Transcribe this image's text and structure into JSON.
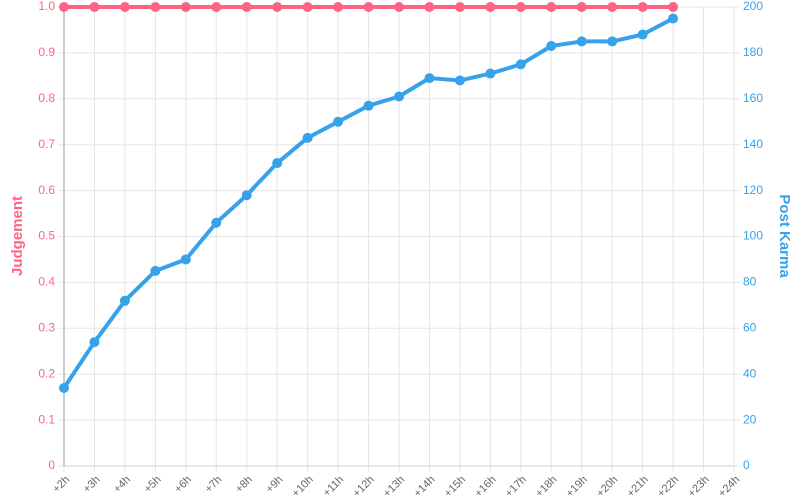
{
  "chart_data": {
    "type": "line",
    "categories": [
      "+2h",
      "+3h",
      "+4h",
      "+5h",
      "+6h",
      "+7h",
      "+8h",
      "+9h",
      "+10h",
      "+11h",
      "+12h",
      "+13h",
      "+14h",
      "+15h",
      "+16h",
      "+17h",
      "+18h",
      "+19h",
      "+20h",
      "+21h",
      "+22h",
      "+23h",
      "+24h"
    ],
    "series": [
      {
        "name": "Judgement",
        "color": "#ff6384",
        "values": [
          1,
          1,
          1,
          1,
          1,
          1,
          1,
          1,
          1,
          1,
          1,
          1,
          1,
          1,
          1,
          1,
          1,
          1,
          1,
          1,
          1,
          null,
          null
        ]
      },
      {
        "name": "Post Karma",
        "color": "#36a2eb",
        "axis": "y2",
        "values": [
          34,
          54,
          72,
          85,
          90,
          106,
          118,
          132,
          143,
          150,
          157,
          161,
          169,
          168,
          171,
          175,
          183,
          185,
          185,
          188,
          195,
          null,
          null
        ]
      }
    ],
    "ylabel": "Judgement",
    "y2label": "Post Karma",
    "ylim": [
      0,
      1
    ],
    "yticks": [
      0,
      0.1,
      0.2,
      0.3,
      0.4,
      0.5,
      0.6,
      0.7,
      0.8,
      0.9,
      {
        "value": 1,
        "label": "1.0"
      }
    ],
    "y2lim": [
      0,
      200
    ],
    "y2ticks": [
      0,
      20,
      40,
      60,
      80,
      100,
      120,
      140,
      160,
      180,
      200
    ],
    "grid": true
  }
}
